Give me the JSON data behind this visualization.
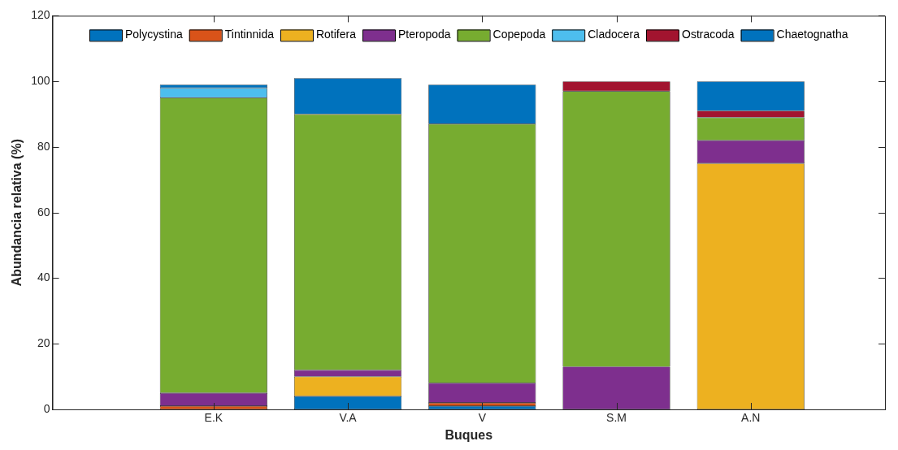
{
  "chart_data": {
    "type": "bar",
    "stacked": true,
    "xlabel": "Buques",
    "ylabel": "Abundancia relativa (%)",
    "categories": [
      "E.K",
      "V.A",
      "V",
      "S.M",
      "A.N"
    ],
    "ylim": [
      0,
      120
    ],
    "yticks": [
      0,
      20,
      40,
      60,
      80,
      100,
      120
    ],
    "grid": false,
    "legend": "top",
    "series": [
      {
        "name": "Polycystina",
        "color": "#0072bd",
        "values": [
          0,
          4,
          1,
          0,
          0
        ]
      },
      {
        "name": "Tintinnida",
        "color": "#d95319",
        "values": [
          1,
          0,
          1,
          0,
          0
        ]
      },
      {
        "name": "Rotifera",
        "color": "#edb120",
        "values": [
          0,
          6,
          0,
          0,
          75
        ]
      },
      {
        "name": "Pteropoda",
        "color": "#7e2f8e",
        "values": [
          4,
          2,
          6,
          13,
          7
        ]
      },
      {
        "name": "Copepoda",
        "color": "#77ac30",
        "values": [
          90,
          78,
          79,
          84,
          7
        ]
      },
      {
        "name": "Cladocera",
        "color": "#4dbeee",
        "values": [
          3,
          0,
          0,
          0,
          0
        ]
      },
      {
        "name": "Ostracoda",
        "color": "#a2142f",
        "values": [
          0,
          0,
          0,
          3,
          2
        ]
      },
      {
        "name": "Chaetognatha",
        "color": "#0072bd",
        "values": [
          1,
          11,
          12,
          0,
          9
        ]
      }
    ]
  }
}
